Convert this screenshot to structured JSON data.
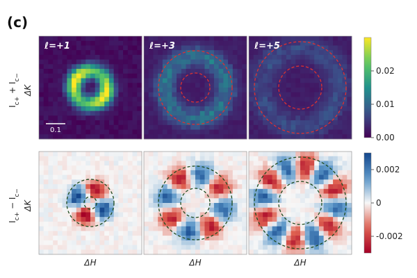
{
  "figure": {
    "panel_letter": "(c)"
  },
  "rows": [
    {
      "ylabel": "I_{c+} + I_{c−}",
      "ylabel_main": "I",
      "ylabel_sub1": "c+",
      "ylabel_mid": " + I",
      "ylabel_sub2": "c−",
      "yaxis": "ΔK",
      "xaxis": "",
      "colormap": "viridis",
      "colorbar": {
        "min": 0.0,
        "max": 0.03,
        "ticks": [
          "0.02",
          "0.01",
          "0.00"
        ],
        "tick_values": [
          0.02,
          0.01,
          0.0
        ]
      }
    },
    {
      "ylabel": "I_{c+} − I_{c−}",
      "ylabel_main": "I",
      "ylabel_sub1": "c+",
      "ylabel_mid": " − I",
      "ylabel_sub2": "c−",
      "yaxis": "ΔK",
      "xaxis": "ΔH",
      "colormap": "diverging-RdBu",
      "colorbar": {
        "min": -0.003,
        "max": 0.003,
        "ticks": [
          "0.002",
          "0",
          "-0.002"
        ],
        "tick_values": [
          0.002,
          0.0,
          -0.002
        ]
      }
    }
  ],
  "panels": [
    {
      "label": "ℓ=+1",
      "l": 1
    },
    {
      "label": "ℓ=+3",
      "l": 3
    },
    {
      "label": "ℓ=+5",
      "l": 5
    }
  ],
  "scale_bar": {
    "label": "0.1"
  },
  "colors": {
    "guide_circle_top": "#e03030",
    "guide_circle_bottom": "#1d4a1d",
    "panel_text": "#ffffff",
    "axis_text": "#222222"
  }
}
